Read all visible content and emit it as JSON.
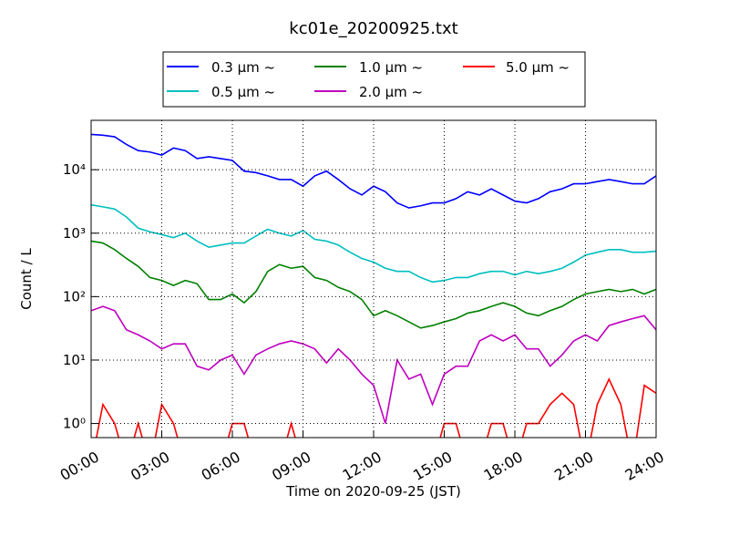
{
  "chart_data": {
    "type": "line",
    "title": "kc01e_20200925.txt",
    "x_label": "Time on 2020-09-25 (JST)",
    "y_label": "Count / L",
    "log_y": true,
    "grid": true,
    "legend_position": "top",
    "x": [
      0,
      0.5,
      1,
      1.5,
      2,
      2.5,
      3,
      3.5,
      4,
      4.5,
      5,
      5.5,
      6,
      6.5,
      7,
      7.5,
      8,
      8.5,
      9,
      9.5,
      10,
      10.5,
      11,
      11.5,
      12,
      12.5,
      13,
      13.5,
      14,
      14.5,
      15,
      15.5,
      16,
      16.5,
      17,
      17.5,
      18,
      18.5,
      19,
      19.5,
      20,
      20.5,
      21,
      21.5,
      22,
      22.5,
      23,
      23.5,
      24
    ],
    "xlim": [
      0,
      24
    ],
    "xticks": [
      {
        "value": 0,
        "label": "00:00"
      },
      {
        "value": 3,
        "label": "03:00"
      },
      {
        "value": 6,
        "label": "06:00"
      },
      {
        "value": 9,
        "label": "09:00"
      },
      {
        "value": 12,
        "label": "12:00"
      },
      {
        "value": 15,
        "label": "15:00"
      },
      {
        "value": 18,
        "label": "18:00"
      },
      {
        "value": 21,
        "label": "21:00"
      },
      {
        "value": 24,
        "label": "24:00"
      }
    ],
    "ylim": [
      0.6,
      60000
    ],
    "yticks": [
      {
        "value": 1,
        "label": "10⁰"
      },
      {
        "value": 10,
        "label": "10¹"
      },
      {
        "value": 100,
        "label": "10²"
      },
      {
        "value": 1000,
        "label": "10³"
      },
      {
        "value": 10000,
        "label": "10⁴"
      }
    ],
    "series": [
      {
        "name": "0.3 μm ~",
        "color": "#0000ff",
        "values": [
          36000,
          35000,
          33000,
          25000,
          20000,
          19000,
          17000,
          22000,
          20000,
          15000,
          16000,
          15000,
          14000,
          9500,
          9000,
          8000,
          7000,
          7000,
          5500,
          8000,
          9500,
          7000,
          5000,
          4000,
          5500,
          4500,
          3000,
          2500,
          2700,
          3000,
          3000,
          3500,
          4500,
          4000,
          5000,
          4000,
          3200,
          3000,
          3500,
          4500,
          5000,
          6000,
          6000,
          6500,
          7000,
          6500,
          6000,
          6000,
          8000
        ]
      },
      {
        "name": "0.5 μm ~",
        "color": "#00bfbf",
        "values": [
          2800,
          2600,
          2400,
          1800,
          1200,
          1050,
          950,
          850,
          1000,
          750,
          600,
          650,
          700,
          700,
          900,
          1150,
          1000,
          900,
          1100,
          800,
          750,
          650,
          500,
          400,
          350,
          280,
          250,
          250,
          200,
          170,
          180,
          200,
          200,
          230,
          250,
          250,
          220,
          250,
          230,
          250,
          280,
          350,
          450,
          500,
          550,
          550,
          500,
          500,
          520
        ]
      },
      {
        "name": "1.0 μm ~",
        "color": "#008000",
        "values": [
          750,
          700,
          550,
          400,
          300,
          200,
          180,
          150,
          180,
          160,
          90,
          90,
          110,
          80,
          120,
          250,
          320,
          280,
          300,
          200,
          180,
          140,
          120,
          90,
          50,
          60,
          50,
          40,
          32,
          35,
          40,
          45,
          55,
          60,
          70,
          80,
          70,
          55,
          50,
          60,
          70,
          90,
          110,
          120,
          130,
          120,
          130,
          110,
          130
        ]
      },
      {
        "name": "2.0 μm ~",
        "color": "#bf00bf",
        "values": [
          60,
          70,
          60,
          30,
          25,
          20,
          15,
          18,
          18,
          8,
          7,
          10,
          12,
          6,
          12,
          15,
          18,
          20,
          18,
          15,
          9,
          15,
          10,
          6,
          4,
          1,
          10,
          5,
          6,
          2,
          6,
          8,
          8,
          20,
          25,
          20,
          25,
          15,
          15,
          8,
          12,
          20,
          25,
          20,
          35,
          40,
          45,
          50,
          30
        ]
      },
      {
        "name": "5.0 μm ~",
        "color": "#ff0000",
        "values": [
          0,
          2,
          1,
          0,
          1,
          0,
          2,
          1,
          0,
          0,
          0,
          0,
          1,
          1,
          0,
          0,
          0,
          1,
          0,
          0,
          0,
          0,
          0,
          0,
          0,
          0,
          0,
          0,
          0,
          0,
          1,
          1,
          0,
          0,
          1,
          1,
          0,
          1,
          1,
          2,
          3,
          2,
          0,
          2,
          5,
          2,
          0,
          4,
          3
        ]
      }
    ]
  }
}
